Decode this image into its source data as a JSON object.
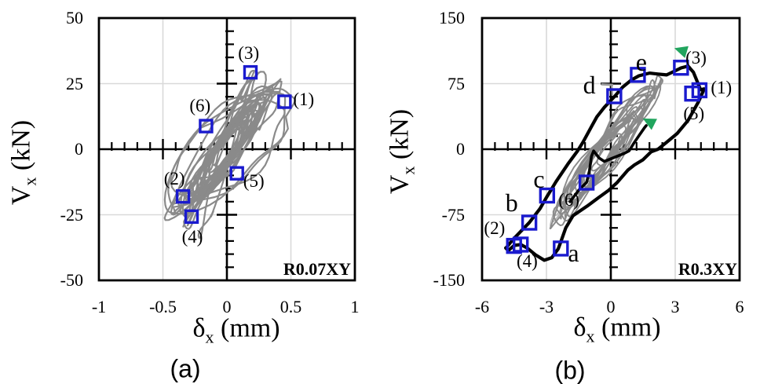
{
  "figure": {
    "background": "#ffffff"
  },
  "colors": {
    "marker_blue": "#1a1ace",
    "triangle_green": "#21a55e",
    "loop_gray": "#8a8a8a",
    "loop_gray_light": "#b3b3b3",
    "curve_black": "#000000",
    "grid": "#d9d9d9",
    "axis": "#000000",
    "text": "#000000"
  },
  "chart_data": [
    {
      "type": "line",
      "panel_caption": "(a)",
      "corner_label": "R0.07XY",
      "xlabel": {
        "base": "δ",
        "sub": "x",
        "unit": " (mm)"
      },
      "ylabel": {
        "base": "V",
        "sub": "x",
        "unit": " (kN)"
      },
      "xlim": [
        -1,
        1
      ],
      "ylim": [
        -50,
        50
      ],
      "xticks": [
        {
          "v": -1,
          "label": "-1"
        },
        {
          "v": -0.5,
          "label": "-0.5"
        },
        {
          "v": 0,
          "label": "0"
        },
        {
          "v": 0.5,
          "label": "0.5"
        },
        {
          "v": 1,
          "label": "1"
        }
      ],
      "yticks": [
        {
          "v": 50,
          "label": "50"
        },
        {
          "v": 25,
          "label": "25"
        },
        {
          "v": 0,
          "label": "0"
        },
        {
          "v": -25,
          "label": "-25"
        },
        {
          "v": -50,
          "label": "-50"
        }
      ],
      "minor_x": 0.1,
      "minor_y": 5,
      "grid_x": [
        -0.5,
        0.5
      ],
      "grid_y": [
        -25,
        25
      ],
      "grid_on": true,
      "markers": [
        {
          "label": "(1)",
          "kind": "number",
          "x": 0.45,
          "y": 18.1,
          "lx": 0.6,
          "ly": 19.0
        },
        {
          "label": "(2)",
          "kind": "number",
          "x": -0.343,
          "y": -18.0,
          "lx": -0.41,
          "ly": -11.5
        },
        {
          "label": "(3)",
          "kind": "number",
          "x": 0.184,
          "y": 29.3,
          "lx": 0.17,
          "ly": 36.5
        },
        {
          "label": "(4)",
          "kind": "number",
          "x": -0.276,
          "y": -25.7,
          "lx": -0.27,
          "ly": -33.6
        },
        {
          "label": "(5)",
          "kind": "number",
          "x": 0.078,
          "y": -9.2,
          "lx": 0.21,
          "ly": -12.3
        },
        {
          "label": "(6)",
          "kind": "number",
          "x": -0.163,
          "y": 8.8,
          "lx": -0.21,
          "ly": 16.4
        }
      ],
      "loops": [
        [
          0.1,
          7,
          0.5,
          0.0,
          0
        ],
        [
          0.13,
          9,
          0.48,
          -0.01,
          0
        ],
        [
          0.16,
          11,
          0.45,
          0.01,
          0
        ],
        [
          0.18,
          12,
          0.43,
          -0.02,
          0
        ],
        [
          0.2,
          13,
          0.4,
          0.0,
          0
        ],
        [
          0.22,
          15,
          0.38,
          -0.02,
          1
        ],
        [
          0.24,
          16,
          0.36,
          0.01,
          0
        ],
        [
          0.26,
          17,
          0.34,
          -0.03,
          0
        ],
        [
          0.28,
          18,
          0.32,
          -0.01,
          -1
        ],
        [
          0.3,
          19,
          0.3,
          0.0,
          0
        ],
        [
          0.32,
          20,
          0.3,
          -0.02,
          0
        ],
        [
          0.33,
          21,
          0.28,
          0.01,
          1
        ],
        [
          0.35,
          22,
          0.28,
          -0.01,
          0
        ],
        [
          0.37,
          23,
          0.26,
          -0.02,
          0
        ],
        [
          0.39,
          24,
          0.26,
          0.0,
          -1
        ],
        [
          0.41,
          25,
          0.24,
          -0.01,
          0
        ],
        [
          0.45,
          26,
          0.45,
          -0.02,
          0
        ],
        [
          0.3,
          27,
          0.22,
          -0.02,
          0
        ],
        [
          0.27,
          29,
          0.2,
          -0.03,
          0
        ],
        [
          0.21,
          31,
          0.18,
          0.0,
          -1
        ],
        [
          0.52,
          24,
          0.7,
          0.02,
          0
        ],
        [
          0.48,
          21,
          0.85,
          0.0,
          0
        ],
        [
          0.44,
          18,
          0.95,
          0.0,
          0
        ],
        [
          0.28,
          31,
          0.25,
          -0.06,
          -1
        ],
        [
          0.15,
          10,
          0.46,
          0.0,
          0
        ],
        [
          0.25,
          19,
          0.33,
          -0.01,
          0
        ],
        [
          0.34,
          23,
          0.27,
          0.0,
          0
        ],
        [
          0.19,
          14,
          0.41,
          0.01,
          0
        ]
      ],
      "noise_seed": 11,
      "loop_width": 2.2
    },
    {
      "type": "line",
      "panel_caption": "(b)",
      "corner_label": "R0.3XY",
      "xlabel": {
        "base": "δ",
        "sub": "x",
        "unit": " (mm)"
      },
      "ylabel": {
        "base": "V",
        "sub": "x",
        "unit": " (kN)"
      },
      "xlim": [
        -6,
        6
      ],
      "ylim": [
        -150,
        150
      ],
      "xticks": [
        {
          "v": -6,
          "label": "-6"
        },
        {
          "v": -3,
          "label": "-3"
        },
        {
          "v": 0,
          "label": "0"
        },
        {
          "v": 3,
          "label": "3"
        },
        {
          "v": 6,
          "label": "6"
        }
      ],
      "yticks": [
        {
          "v": 150,
          "label": "150"
        },
        {
          "v": 75,
          "label": "75"
        },
        {
          "v": 0,
          "label": "0"
        },
        {
          "v": -75,
          "label": "-75"
        },
        {
          "v": -150,
          "label": "-150"
        }
      ],
      "minor_x": 0.6,
      "minor_y": 15,
      "grid_x": [
        -3,
        3
      ],
      "grid_y": [
        -75,
        75
      ],
      "grid_on": true,
      "markers": [
        {
          "label": "(1)",
          "kind": "number",
          "x": 4.13,
          "y": 67.4,
          "lx": 5.15,
          "ly": 70.5
        },
        {
          "label": "(2)",
          "kind": "number",
          "x": -4.51,
          "y": -110.6,
          "lx": -5.42,
          "ly": -90.9
        },
        {
          "label": "(3)",
          "kind": "number",
          "x": 3.27,
          "y": 93.2,
          "lx": 3.97,
          "ly": 104.5
        },
        {
          "label": "(4)",
          "kind": "number",
          "x": -4.2,
          "y": -109.1,
          "lx": -3.9,
          "ly": -128.8
        },
        {
          "label": "(5)",
          "kind": "number",
          "x": 3.79,
          "y": 63.6,
          "lx": 3.87,
          "ly": 40.2
        },
        {
          "label": "(6)",
          "kind": "number",
          "x": -1.13,
          "y": -38.2,
          "lx": -1.95,
          "ly": -58.0
        },
        {
          "label": "a",
          "kind": "letter",
          "x": -2.33,
          "y": -113.6,
          "lx": -1.74,
          "ly": -118.5
        },
        {
          "label": "b",
          "kind": "letter",
          "x": -3.8,
          "y": -84.0,
          "lx": -4.62,
          "ly": -61.0
        },
        {
          "label": "c",
          "kind": "letter",
          "x": -2.97,
          "y": -53.0,
          "lx": -3.35,
          "ly": -34.0
        },
        {
          "label": "d",
          "kind": "letter",
          "x": 0.16,
          "y": 60.6,
          "lx": -1.0,
          "ly": 73.5
        },
        {
          "label": "e",
          "kind": "letter",
          "x": 1.26,
          "y": 85.0,
          "lx": 1.42,
          "ly": 100.0
        }
      ],
      "triangles": [
        {
          "x": 3.35,
          "y": 112,
          "rot": -18
        },
        {
          "x": 1.85,
          "y": 30,
          "rot": -8
        }
      ],
      "backbone": [
        [
          -4.85,
          -112
        ],
        [
          -4.55,
          -103
        ],
        [
          -3.8,
          -84
        ],
        [
          -3.3,
          -68
        ],
        [
          -2.97,
          -54
        ],
        [
          -2.55,
          -37
        ],
        [
          -2.0,
          -17
        ],
        [
          -1.55,
          -2
        ],
        [
          -1.3,
          8
        ],
        [
          -0.9,
          26
        ],
        [
          -0.65,
          37
        ],
        [
          -0.3,
          48
        ],
        [
          0.16,
          60
        ],
        [
          0.55,
          71
        ],
        [
          0.95,
          79
        ],
        [
          1.31,
          84
        ],
        [
          1.8,
          87
        ],
        [
          2.2,
          86
        ],
        [
          2.6,
          85
        ],
        [
          2.95,
          89
        ],
        [
          3.27,
          93
        ],
        [
          3.6,
          95
        ],
        [
          3.85,
          88
        ],
        [
          4.05,
          76
        ],
        [
          4.18,
          68
        ],
        [
          4.35,
          69
        ],
        [
          4.1,
          55
        ],
        [
          3.6,
          33
        ],
        [
          3.09,
          18
        ],
        [
          2.6,
          8
        ],
        [
          2.2,
          0
        ],
        [
          1.88,
          -3
        ],
        [
          1.5,
          -12
        ],
        [
          1.1,
          -18
        ],
        [
          0.79,
          -24
        ],
        [
          0.3,
          -38
        ],
        [
          -0.1,
          -47
        ],
        [
          -0.55,
          -55
        ],
        [
          -1.1,
          -65
        ],
        [
          -1.76,
          -76
        ],
        [
          -2.1,
          -90
        ],
        [
          -2.33,
          -106
        ],
        [
          -2.45,
          -114
        ],
        [
          -2.75,
          -124
        ],
        [
          -3.1,
          -127
        ],
        [
          -3.5,
          -121
        ],
        [
          -3.9,
          -113
        ],
        [
          -4.2,
          -109
        ],
        [
          -4.5,
          -110
        ],
        [
          -4.78,
          -116
        ],
        [
          -4.9,
          -113
        ],
        [
          -4.85,
          -112
        ]
      ],
      "inner_trace": [
        [
          -1.9,
          -60
        ],
        [
          -1.5,
          -47
        ],
        [
          -1.13,
          -38
        ],
        [
          -1.0,
          -25
        ],
        [
          -0.9,
          -8
        ],
        [
          -0.8,
          -2
        ],
        [
          -0.55,
          -10
        ],
        [
          -0.3,
          -14
        ],
        [
          0.0,
          -11
        ],
        [
          0.3,
          -8
        ],
        [
          0.6,
          -5
        ],
        [
          0.85,
          -2
        ],
        [
          1.05,
          6
        ],
        [
          1.3,
          15
        ],
        [
          1.55,
          24
        ],
        [
          1.65,
          27
        ]
      ],
      "gray_dash": {
        "h": [
          [
            -0.45,
            74.2
          ],
          [
            0.11,
            73.5
          ]
        ],
        "v": [
          [
            0.04,
            73.0
          ],
          [
            0.07,
            61.5
          ]
        ]
      },
      "thin_loops": {
        "cx": -2.3,
        "cy": -62,
        "phi": 0.35,
        "amps": [
          [
            0.52,
            27
          ],
          [
            0.42,
            21
          ],
          [
            0.3,
            14
          ]
        ]
      },
      "loops": [
        [
          0.55,
          18,
          0.5,
          -0.05,
          0
        ],
        [
          0.75,
          25,
          0.45,
          -0.1,
          0
        ],
        [
          0.95,
          32,
          0.42,
          -0.05,
          2
        ],
        [
          1.15,
          38,
          0.4,
          -0.15,
          0
        ],
        [
          1.35,
          45,
          0.38,
          -0.1,
          -2
        ],
        [
          1.55,
          50,
          0.35,
          -0.05,
          0
        ],
        [
          1.7,
          56,
          0.33,
          -0.15,
          3
        ],
        [
          1.9,
          62,
          0.3,
          -0.1,
          0
        ],
        [
          2.05,
          68,
          0.28,
          -0.2,
          -3
        ],
        [
          2.2,
          72,
          0.26,
          -0.1,
          0
        ],
        [
          2.35,
          78,
          0.24,
          -0.15,
          2
        ],
        [
          2.5,
          82,
          0.22,
          -0.2,
          0
        ],
        [
          2.6,
          86,
          0.2,
          -0.1,
          -2
        ],
        [
          1.25,
          42,
          0.36,
          -0.08,
          1
        ],
        [
          1.8,
          58,
          0.31,
          -0.12,
          -1
        ],
        [
          2.45,
          80,
          0.23,
          -0.05,
          1
        ],
        [
          1.0,
          34,
          0.41,
          -0.1,
          0
        ],
        [
          2.15,
          70,
          0.27,
          -0.15,
          1
        ]
      ],
      "noise_seed": 23,
      "loop_width": 1.9
    }
  ]
}
